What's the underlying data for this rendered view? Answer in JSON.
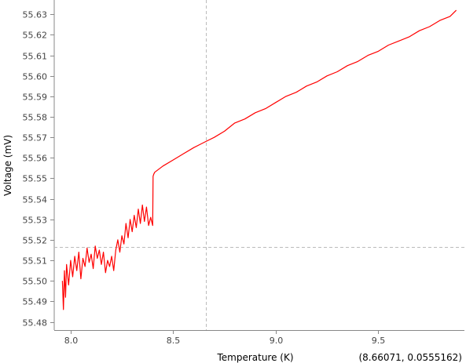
{
  "chart_data": {
    "type": "line",
    "title": "",
    "xlabel": "Temperature (K)",
    "ylabel": "Voltage (mV)",
    "xlim": [
      7.92,
      9.92
    ],
    "ylim": [
      55.476,
      55.637
    ],
    "xticks": [
      8.0,
      8.5,
      9.0,
      9.5
    ],
    "xtick_labels": [
      "8.0",
      "8.5",
      "9.0",
      "9.5"
    ],
    "yticks": [
      55.48,
      55.49,
      55.5,
      55.51,
      55.52,
      55.53,
      55.54,
      55.55,
      55.56,
      55.57,
      55.58,
      55.59,
      55.6,
      55.61,
      55.62,
      55.63
    ],
    "ytick_labels": [
      "55.48",
      "55.49",
      "55.50",
      "55.51",
      "55.52",
      "55.53",
      "55.54",
      "55.55",
      "55.56",
      "55.57",
      "55.58",
      "55.59",
      "55.60",
      "55.61",
      "55.62",
      "55.63"
    ],
    "grid": false,
    "crosshair": {
      "x": 8.66071,
      "y": 55.5165
    },
    "readout": "(8.66071, 0.0555162)",
    "series": [
      {
        "color": "#ff0000",
        "x": [
          7.96,
          7.965,
          7.97,
          7.975,
          7.98,
          7.99,
          8.0,
          8.01,
          8.02,
          8.03,
          8.04,
          8.05,
          8.06,
          8.07,
          8.08,
          8.09,
          8.1,
          8.11,
          8.12,
          8.13,
          8.14,
          8.15,
          8.16,
          8.17,
          8.18,
          8.19,
          8.2,
          8.21,
          8.22,
          8.23,
          8.24,
          8.25,
          8.26,
          8.27,
          8.28,
          8.29,
          8.3,
          8.31,
          8.32,
          8.33,
          8.34,
          8.35,
          8.36,
          8.37,
          8.38,
          8.39,
          8.4,
          8.402,
          8.405,
          8.41,
          8.45,
          8.5,
          8.55,
          8.6,
          8.66,
          8.7,
          8.75,
          8.8,
          8.85,
          8.9,
          8.95,
          9.0,
          9.05,
          9.1,
          9.15,
          9.2,
          9.25,
          9.3,
          9.35,
          9.4,
          9.45,
          9.5,
          9.55,
          9.6,
          9.65,
          9.7,
          9.75,
          9.8,
          9.85,
          9.88
        ],
        "y": [
          55.5,
          55.486,
          55.505,
          55.492,
          55.508,
          55.498,
          55.51,
          55.502,
          55.512,
          55.505,
          55.514,
          55.501,
          55.511,
          55.507,
          55.516,
          55.509,
          55.513,
          55.506,
          55.517,
          55.511,
          55.515,
          55.508,
          55.514,
          55.504,
          55.51,
          55.507,
          55.512,
          55.505,
          55.515,
          55.52,
          55.514,
          55.522,
          55.518,
          55.528,
          55.521,
          55.53,
          55.524,
          55.532,
          55.526,
          55.535,
          55.528,
          55.537,
          55.529,
          55.536,
          55.527,
          55.531,
          55.527,
          55.551,
          55.552,
          55.553,
          55.556,
          55.559,
          55.562,
          55.565,
          55.568,
          55.57,
          55.573,
          55.577,
          55.579,
          55.582,
          55.584,
          55.587,
          55.59,
          55.592,
          55.595,
          55.597,
          55.6,
          55.602,
          55.605,
          55.607,
          55.61,
          55.612,
          55.615,
          55.617,
          55.619,
          55.622,
          55.624,
          55.627,
          55.629,
          55.632
        ]
      }
    ]
  }
}
